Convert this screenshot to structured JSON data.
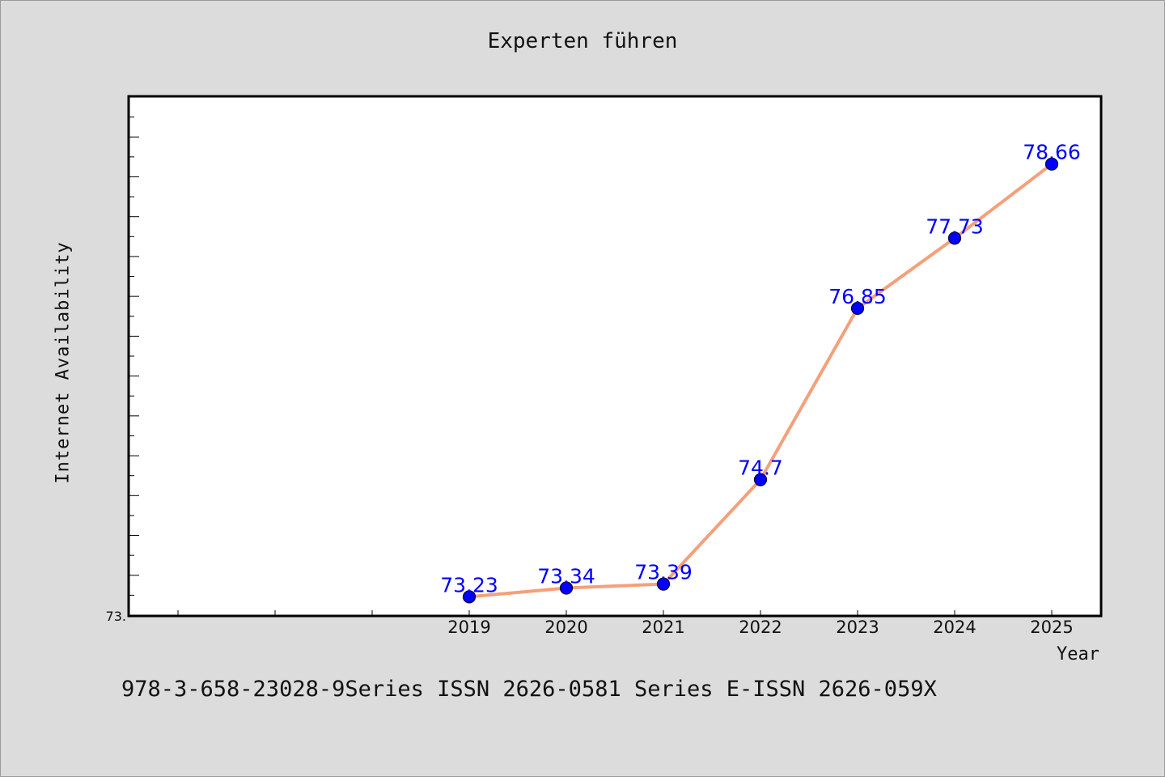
{
  "chart_data": {
    "type": "line",
    "title": "Experten führen",
    "xlabel": "Year",
    "ylabel": "Internet Availability",
    "x": [
      "2019",
      "2020",
      "2021",
      "2022",
      "2023",
      "2024",
      "2025"
    ],
    "series": [
      {
        "values": [
          73.23,
          73.34,
          73.39,
          74.7,
          76.85,
          77.73,
          78.66
        ],
        "labels": [
          "73.23",
          "73.34",
          "73.39",
          "74.7",
          "76.85",
          "77.73",
          "78.66"
        ],
        "line_color": "#f4a07a",
        "marker_color": "#0000ff"
      }
    ],
    "ylim": [
      73.0,
      79.5
    ],
    "ytick_label": "73.",
    "grid": false,
    "legend": "none"
  },
  "footer": "978-3-658-23028-9Series ISSN 2626-0581 Series E-ISSN 2626-059X"
}
